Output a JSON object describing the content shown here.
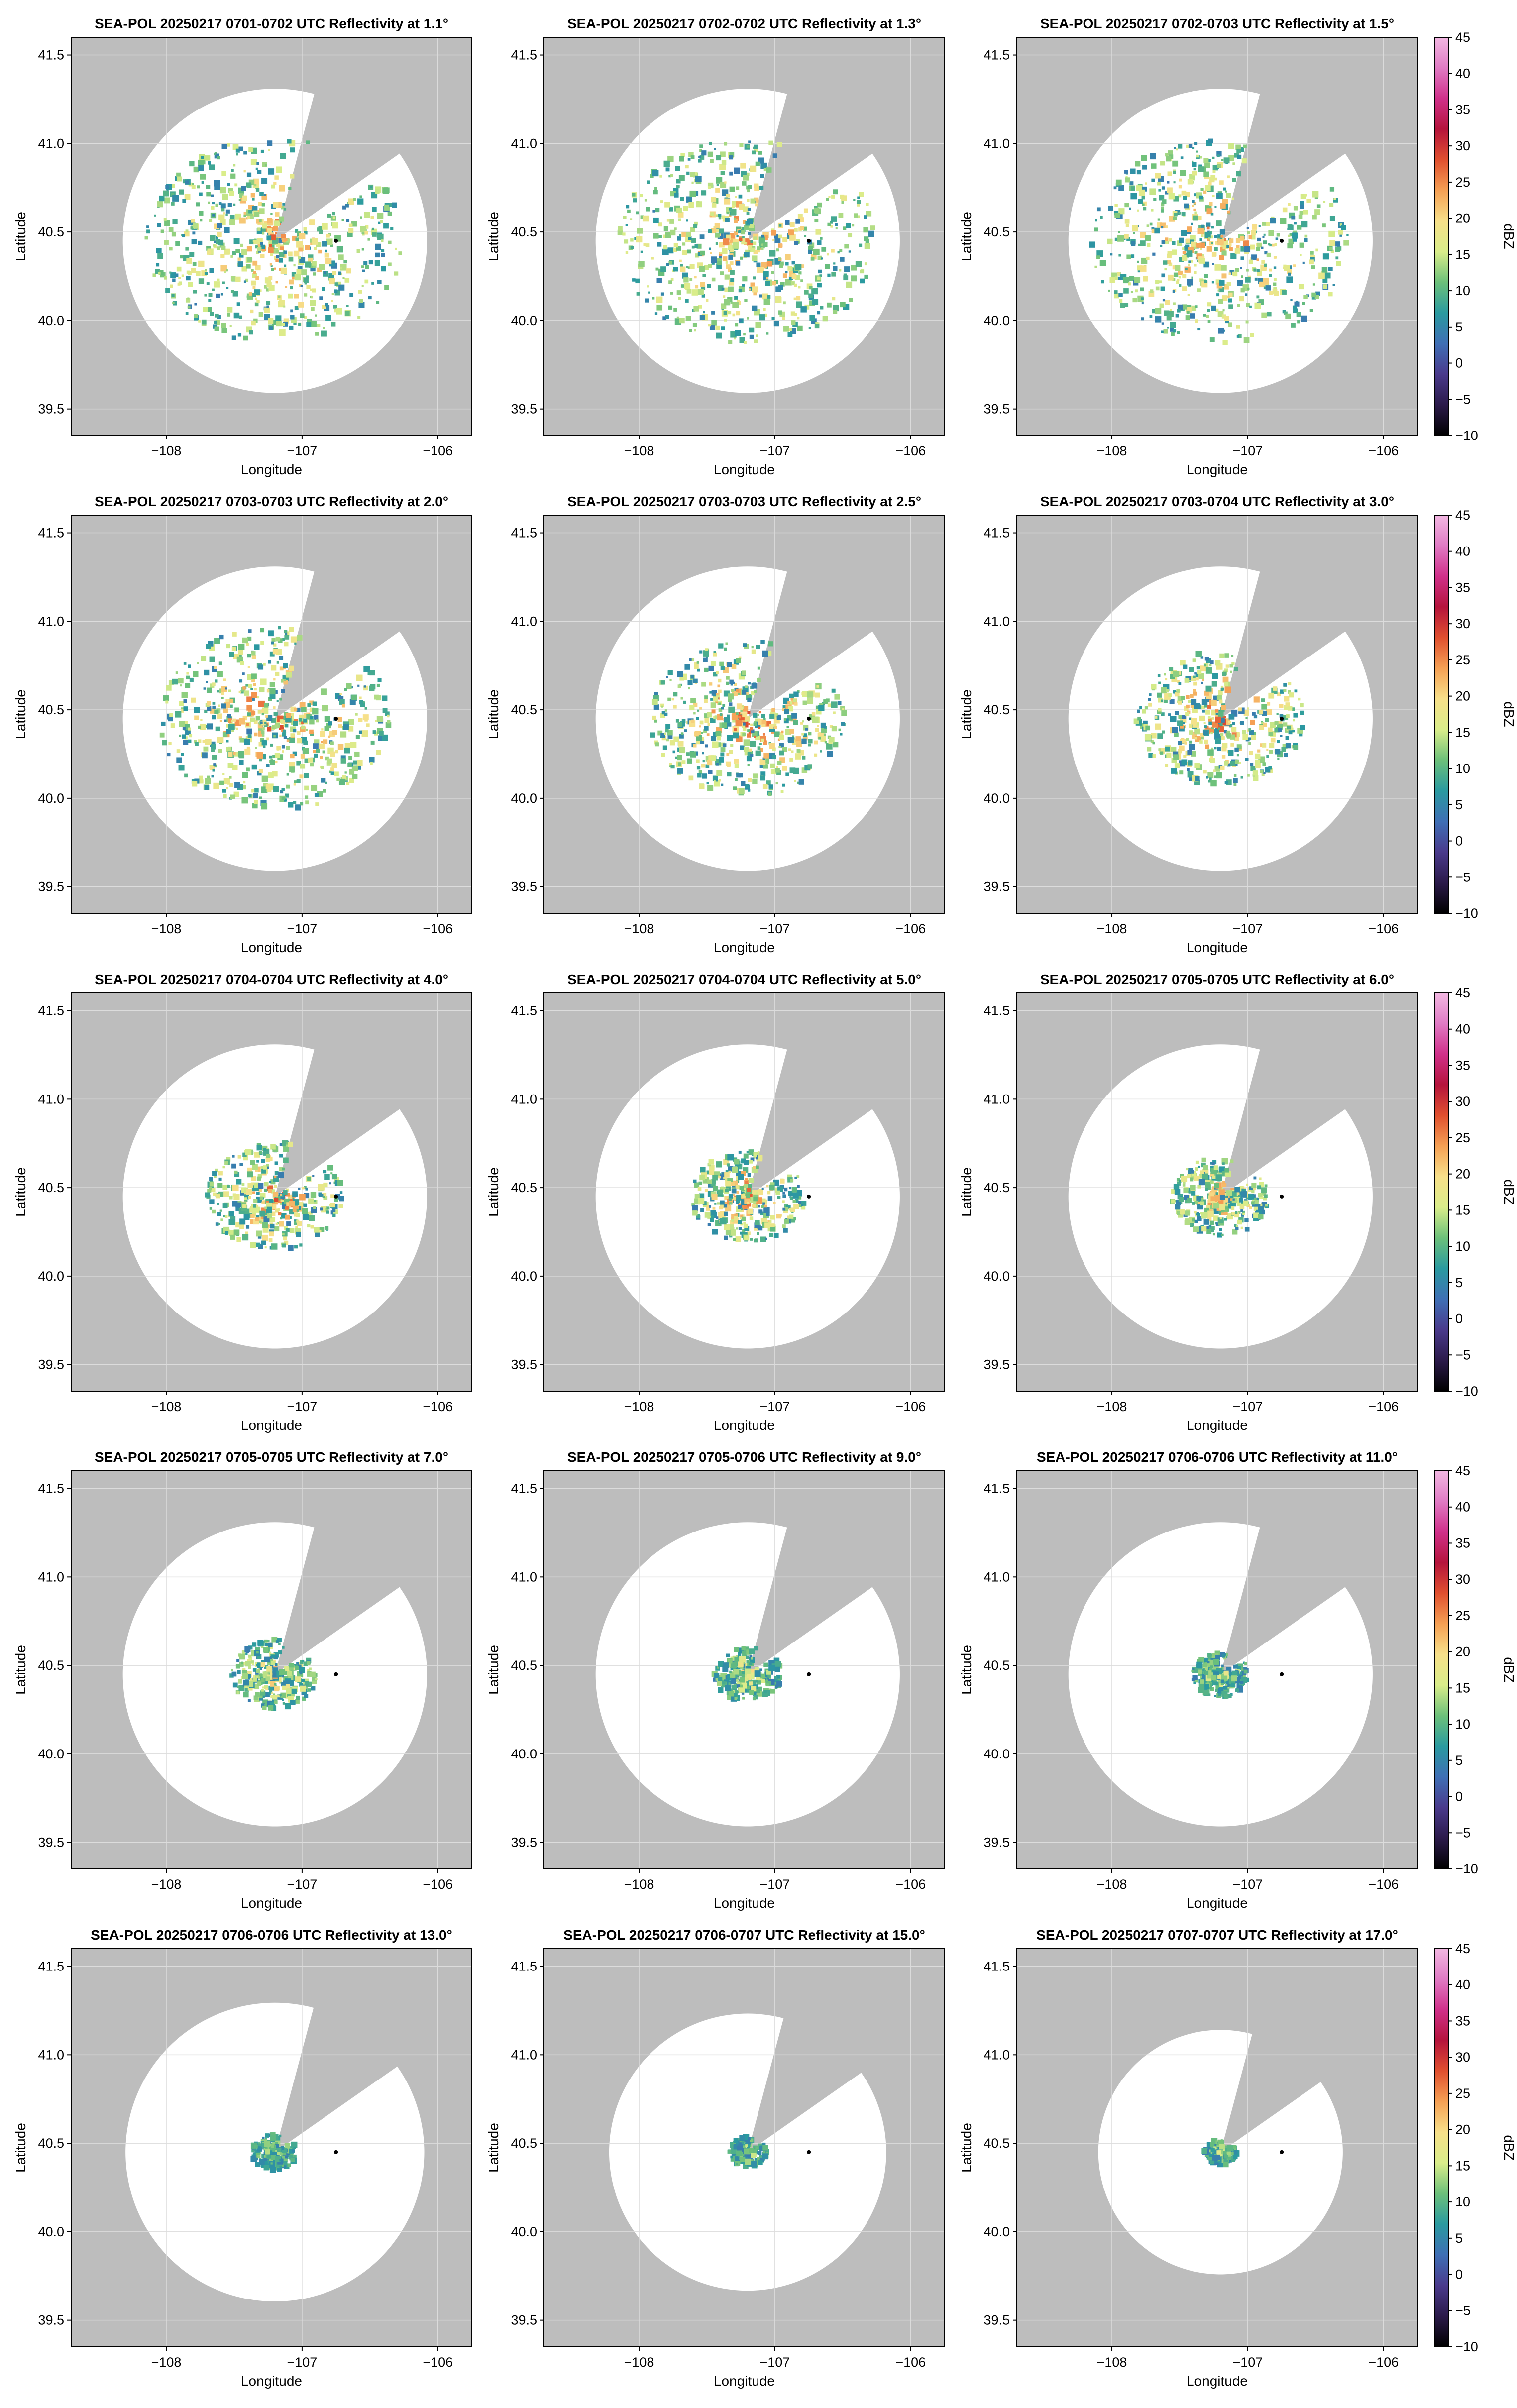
{
  "figure": {
    "colors": {
      "no_coverage": "#bdbdbd",
      "axes_frame": "#000000",
      "grid": "#dcdcdc",
      "radar_site_marker": "#000000"
    },
    "colorscale": [
      "#000000",
      "#2b1a4a",
      "#4a3a8c",
      "#3f6fb5",
      "#2a9aa0",
      "#6cc07a",
      "#d9ed8a",
      "#f7e08a",
      "#f5a054",
      "#e0502f",
      "#b5143c",
      "#d0308a",
      "#e07bc4",
      "#f2b8e2"
    ]
  },
  "chart_data": [
    {
      "type": "heatmap",
      "title": "SEA-POL 20250217 0701-0702 UTC Reflectivity at 1.1°",
      "xlabel": "Longitude",
      "ylabel": "Latitude",
      "xticks": [
        "−108",
        "−107",
        "−106"
      ],
      "yticks": [
        "39.5",
        "40.0",
        "40.5",
        "41.0",
        "41.5"
      ],
      "xlim": [
        -108.7,
        -105.75
      ],
      "ylim": [
        39.35,
        41.6
      ],
      "radar_site": [
        -107.2,
        40.45
      ],
      "marker": [
        -106.75,
        40.45
      ],
      "coverage_radius_deg": 1.12,
      "blocked_sector_deg": [
        15,
        55
      ],
      "echo_extent_deg": 0.95,
      "echo_peak_dBZ": 28,
      "colorbar": null
    },
    {
      "type": "heatmap",
      "title": "SEA-POL 20250217 0702-0702 UTC Reflectivity at 1.3°",
      "xlabel": "Longitude",
      "ylabel": "Latitude",
      "xticks": [
        "−108",
        "−107",
        "−106"
      ],
      "yticks": [
        "39.5",
        "40.0",
        "40.5",
        "41.0",
        "41.5"
      ],
      "xlim": [
        -108.7,
        -105.75
      ],
      "ylim": [
        39.35,
        41.6
      ],
      "radar_site": [
        -107.2,
        40.45
      ],
      "marker": [
        -106.75,
        40.45
      ],
      "coverage_radius_deg": 1.12,
      "blocked_sector_deg": [
        15,
        55
      ],
      "echo_extent_deg": 0.95,
      "echo_peak_dBZ": 28,
      "colorbar": null
    },
    {
      "type": "heatmap",
      "title": "SEA-POL 20250217 0702-0703 UTC Reflectivity at 1.5°",
      "xlabel": "Longitude",
      "ylabel": "Latitude",
      "xticks": [
        "−108",
        "−107",
        "−106"
      ],
      "yticks": [
        "39.5",
        "40.0",
        "40.5",
        "41.0",
        "41.5"
      ],
      "xlim": [
        -108.7,
        -105.75
      ],
      "ylim": [
        39.35,
        41.6
      ],
      "radar_site": [
        -107.2,
        40.45
      ],
      "marker": [
        -106.75,
        40.45
      ],
      "coverage_radius_deg": 1.12,
      "blocked_sector_deg": [
        15,
        55
      ],
      "echo_extent_deg": 0.95,
      "echo_peak_dBZ": 28,
      "colorbar": {
        "label": "dBZ",
        "min": -10,
        "max": 45,
        "ticks": [
          "−10",
          "−5",
          "0",
          "5",
          "10",
          "15",
          "20",
          "25",
          "30",
          "35",
          "40",
          "45"
        ]
      }
    },
    {
      "type": "heatmap",
      "title": "SEA-POL 20250217 0703-0703 UTC Reflectivity at 2.0°",
      "xlabel": "Longitude",
      "ylabel": "Latitude",
      "xticks": [
        "−108",
        "−107",
        "−106"
      ],
      "yticks": [
        "39.5",
        "40.0",
        "40.5",
        "41.0",
        "41.5"
      ],
      "xlim": [
        -108.7,
        -105.75
      ],
      "ylim": [
        39.35,
        41.6
      ],
      "radar_site": [
        -107.2,
        40.45
      ],
      "marker": [
        -106.75,
        40.45
      ],
      "coverage_radius_deg": 1.12,
      "blocked_sector_deg": [
        15,
        55
      ],
      "echo_extent_deg": 0.85,
      "echo_peak_dBZ": 30,
      "colorbar": null
    },
    {
      "type": "heatmap",
      "title": "SEA-POL 20250217 0703-0703 UTC Reflectivity at 2.5°",
      "xlabel": "Longitude",
      "ylabel": "Latitude",
      "xticks": [
        "−108",
        "−107",
        "−106"
      ],
      "yticks": [
        "39.5",
        "40.0",
        "40.5",
        "41.0",
        "41.5"
      ],
      "xlim": [
        -108.7,
        -105.75
      ],
      "ylim": [
        39.35,
        41.6
      ],
      "radar_site": [
        -107.2,
        40.45
      ],
      "marker": [
        -106.75,
        40.45
      ],
      "coverage_radius_deg": 1.12,
      "blocked_sector_deg": [
        15,
        55
      ],
      "echo_extent_deg": 0.72,
      "echo_peak_dBZ": 30,
      "colorbar": null
    },
    {
      "type": "heatmap",
      "title": "SEA-POL 20250217 0703-0704 UTC Reflectivity at 3.0°",
      "xlabel": "Longitude",
      "ylabel": "Latitude",
      "xticks": [
        "−108",
        "−107",
        "−106"
      ],
      "yticks": [
        "39.5",
        "40.0",
        "40.5",
        "41.0",
        "41.5"
      ],
      "xlim": [
        -108.7,
        -105.75
      ],
      "ylim": [
        39.35,
        41.6
      ],
      "radar_site": [
        -107.2,
        40.45
      ],
      "marker": [
        -106.75,
        40.45
      ],
      "coverage_radius_deg": 1.12,
      "blocked_sector_deg": [
        15,
        55
      ],
      "echo_extent_deg": 0.62,
      "echo_peak_dBZ": 30,
      "colorbar": {
        "label": "dBZ",
        "min": -10,
        "max": 45,
        "ticks": [
          "−10",
          "−5",
          "0",
          "5",
          "10",
          "15",
          "20",
          "25",
          "30",
          "35",
          "40",
          "45"
        ]
      }
    },
    {
      "type": "heatmap",
      "title": "SEA-POL 20250217 0704-0704 UTC Reflectivity at 4.0°",
      "xlabel": "Longitude",
      "ylabel": "Latitude",
      "xticks": [
        "−108",
        "−107",
        "−106"
      ],
      "yticks": [
        "39.5",
        "40.0",
        "40.5",
        "41.0",
        "41.5"
      ],
      "xlim": [
        -108.7,
        -105.75
      ],
      "ylim": [
        39.35,
        41.6
      ],
      "radar_site": [
        -107.2,
        40.45
      ],
      "marker": [
        -106.75,
        40.45
      ],
      "coverage_radius_deg": 1.12,
      "blocked_sector_deg": [
        15,
        55
      ],
      "echo_extent_deg": 0.5,
      "echo_peak_dBZ": 30,
      "colorbar": null
    },
    {
      "type": "heatmap",
      "title": "SEA-POL 20250217 0704-0704 UTC Reflectivity at 5.0°",
      "xlabel": "Longitude",
      "ylabel": "Latitude",
      "xticks": [
        "−108",
        "−107",
        "−106"
      ],
      "yticks": [
        "39.5",
        "40.0",
        "40.5",
        "41.0",
        "41.5"
      ],
      "xlim": [
        -108.7,
        -105.75
      ],
      "ylim": [
        39.35,
        41.6
      ],
      "radar_site": [
        -107.2,
        40.45
      ],
      "marker": [
        -106.75,
        40.45
      ],
      "coverage_radius_deg": 1.12,
      "blocked_sector_deg": [
        15,
        55
      ],
      "echo_extent_deg": 0.42,
      "echo_peak_dBZ": 30,
      "colorbar": null
    },
    {
      "type": "heatmap",
      "title": "SEA-POL 20250217 0705-0705 UTC Reflectivity at 6.0°",
      "xlabel": "Longitude",
      "ylabel": "Latitude",
      "xticks": [
        "−108",
        "−107",
        "−106"
      ],
      "yticks": [
        "39.5",
        "40.0",
        "40.5",
        "41.0",
        "41.5"
      ],
      "xlim": [
        -108.7,
        -105.75
      ],
      "ylim": [
        39.35,
        41.6
      ],
      "radar_site": [
        -107.2,
        40.45
      ],
      "marker": [
        -106.75,
        40.45
      ],
      "coverage_radius_deg": 1.12,
      "blocked_sector_deg": [
        15,
        55
      ],
      "echo_extent_deg": 0.36,
      "echo_peak_dBZ": 28,
      "colorbar": {
        "label": "dBZ",
        "min": -10,
        "max": 45,
        "ticks": [
          "−10",
          "−5",
          "0",
          "5",
          "10",
          "15",
          "20",
          "25",
          "30",
          "35",
          "40",
          "45"
        ]
      }
    },
    {
      "type": "heatmap",
      "title": "SEA-POL 20250217 0705-0705 UTC Reflectivity at 7.0°",
      "xlabel": "Longitude",
      "ylabel": "Latitude",
      "xticks": [
        "−108",
        "−107",
        "−106"
      ],
      "yticks": [
        "39.5",
        "40.0",
        "40.5",
        "41.0",
        "41.5"
      ],
      "xlim": [
        -108.7,
        -105.75
      ],
      "ylim": [
        39.35,
        41.6
      ],
      "radar_site": [
        -107.2,
        40.45
      ],
      "marker": [
        -106.75,
        40.45
      ],
      "coverage_radius_deg": 1.12,
      "blocked_sector_deg": [
        15,
        55
      ],
      "echo_extent_deg": 0.32,
      "echo_peak_dBZ": 25,
      "colorbar": null
    },
    {
      "type": "heatmap",
      "title": "SEA-POL 20250217 0705-0706 UTC Reflectivity at 9.0°",
      "xlabel": "Longitude",
      "ylabel": "Latitude",
      "xticks": [
        "−108",
        "−107",
        "−106"
      ],
      "yticks": [
        "39.5",
        "40.0",
        "40.5",
        "41.0",
        "41.5"
      ],
      "xlim": [
        -108.7,
        -105.75
      ],
      "ylim": [
        39.35,
        41.6
      ],
      "radar_site": [
        -107.2,
        40.45
      ],
      "marker": [
        -106.75,
        40.45
      ],
      "coverage_radius_deg": 1.12,
      "blocked_sector_deg": [
        15,
        55
      ],
      "echo_extent_deg": 0.25,
      "echo_peak_dBZ": 22,
      "colorbar": null
    },
    {
      "type": "heatmap",
      "title": "SEA-POL 20250217 0706-0706 UTC Reflectivity at 11.0°",
      "xlabel": "Longitude",
      "ylabel": "Latitude",
      "xticks": [
        "−108",
        "−107",
        "−106"
      ],
      "yticks": [
        "39.5",
        "40.0",
        "40.5",
        "41.0",
        "41.5"
      ],
      "xlim": [
        -108.7,
        -105.75
      ],
      "ylim": [
        39.35,
        41.6
      ],
      "radar_site": [
        -107.2,
        40.45
      ],
      "marker": [
        -106.75,
        40.45
      ],
      "coverage_radius_deg": 1.12,
      "blocked_sector_deg": [
        15,
        55
      ],
      "echo_extent_deg": 0.21,
      "echo_peak_dBZ": 20,
      "colorbar": {
        "label": "dBZ",
        "min": -10,
        "max": 45,
        "ticks": [
          "−10",
          "−5",
          "0",
          "5",
          "10",
          "15",
          "20",
          "25",
          "30",
          "35",
          "40",
          "45"
        ]
      }
    },
    {
      "type": "heatmap",
      "title": "SEA-POL 20250217 0706-0706 UTC Reflectivity at 13.0°",
      "xlabel": "Longitude",
      "ylabel": "Latitude",
      "xticks": [
        "−108",
        "−107",
        "−106"
      ],
      "yticks": [
        "39.5",
        "40.0",
        "40.5",
        "41.0",
        "41.5"
      ],
      "xlim": [
        -108.7,
        -105.75
      ],
      "ylim": [
        39.35,
        41.6
      ],
      "radar_site": [
        -107.2,
        40.45
      ],
      "marker": [
        -106.75,
        40.45
      ],
      "coverage_radius_deg": 1.1,
      "blocked_sector_deg": [
        15,
        55
      ],
      "echo_extent_deg": 0.17,
      "echo_peak_dBZ": 18,
      "colorbar": null
    },
    {
      "type": "heatmap",
      "title": "SEA-POL 20250217 0706-0707 UTC Reflectivity at 15.0°",
      "xlabel": "Longitude",
      "ylabel": "Latitude",
      "xticks": [
        "−108",
        "−107",
        "−106"
      ],
      "yticks": [
        "39.5",
        "40.0",
        "40.5",
        "41.0",
        "41.5"
      ],
      "xlim": [
        -108.7,
        -105.75
      ],
      "ylim": [
        39.35,
        41.6
      ],
      "radar_site": [
        -107.2,
        40.45
      ],
      "marker": [
        -106.75,
        40.45
      ],
      "coverage_radius_deg": 1.02,
      "blocked_sector_deg": [
        15,
        55
      ],
      "echo_extent_deg": 0.14,
      "echo_peak_dBZ": 18,
      "colorbar": null
    },
    {
      "type": "heatmap",
      "title": "SEA-POL 20250217 0707-0707 UTC Reflectivity at 17.0°",
      "xlabel": "Longitude",
      "ylabel": "Latitude",
      "xticks": [
        "−108",
        "−107",
        "−106"
      ],
      "yticks": [
        "39.5",
        "40.0",
        "40.5",
        "41.0",
        "41.5"
      ],
      "xlim": [
        -108.7,
        -105.75
      ],
      "ylim": [
        39.35,
        41.6
      ],
      "radar_site": [
        -107.2,
        40.45
      ],
      "marker": [
        -106.75,
        40.45
      ],
      "coverage_radius_deg": 0.9,
      "blocked_sector_deg": [
        15,
        55
      ],
      "echo_extent_deg": 0.12,
      "echo_peak_dBZ": 18,
      "colorbar": {
        "label": "dBZ",
        "min": -10,
        "max": 45,
        "ticks": [
          "−10",
          "−5",
          "0",
          "5",
          "10",
          "15",
          "20",
          "25",
          "30",
          "35",
          "40",
          "45"
        ]
      }
    }
  ]
}
